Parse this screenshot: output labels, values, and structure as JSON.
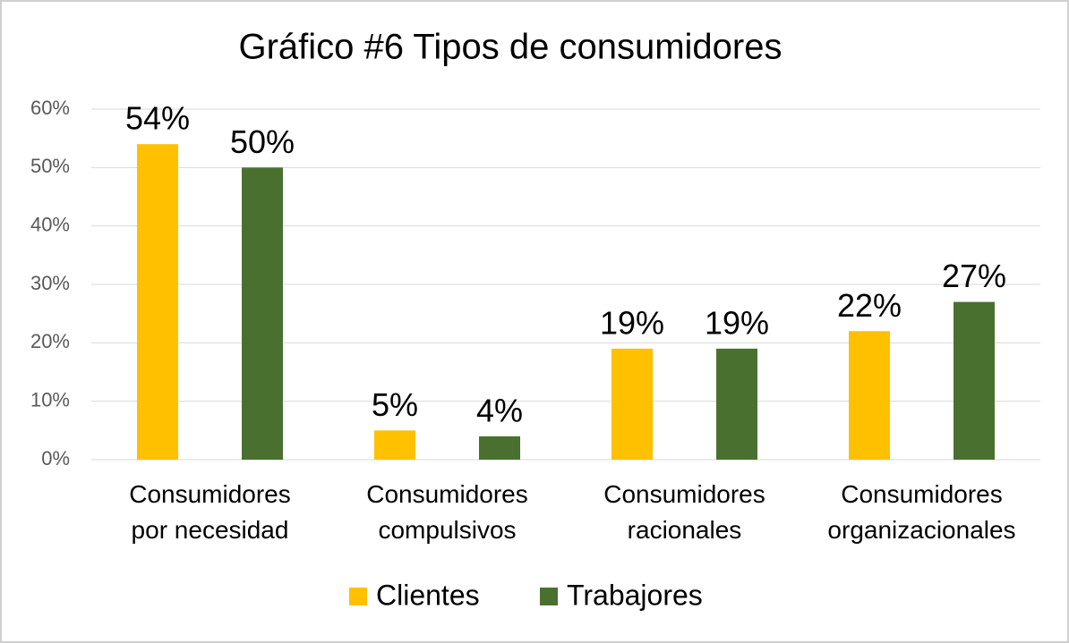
{
  "chart_data": {
    "type": "bar",
    "title": "Gráfico #6 Tipos de consumidores",
    "categories": [
      "Consumidores por necesidad",
      "Consumidores compulsivos",
      "Consumidores racionales",
      "Consumidores organizacionales"
    ],
    "series": [
      {
        "name": "Clientes",
        "color": "#ffc000",
        "values": [
          54,
          5,
          19,
          22
        ],
        "value_labels": [
          "54%",
          "5%",
          "19%",
          "22%"
        ]
      },
      {
        "name": "Trabajores",
        "color": "#4a7030",
        "values": [
          50,
          4,
          19,
          27
        ],
        "value_labels": [
          "50%",
          "4%",
          "19%",
          "27%"
        ]
      }
    ],
    "ylim": [
      0,
      60
    ],
    "yticks": [
      {
        "value": 0,
        "label": "0%"
      },
      {
        "value": 10,
        "label": "10%"
      },
      {
        "value": 20,
        "label": "20%"
      },
      {
        "value": 30,
        "label": "30%"
      },
      {
        "value": 40,
        "label": "40%"
      },
      {
        "value": 50,
        "label": "50%"
      },
      {
        "value": 60,
        "label": "60%"
      }
    ],
    "grid": true,
    "legend": "bottom"
  }
}
